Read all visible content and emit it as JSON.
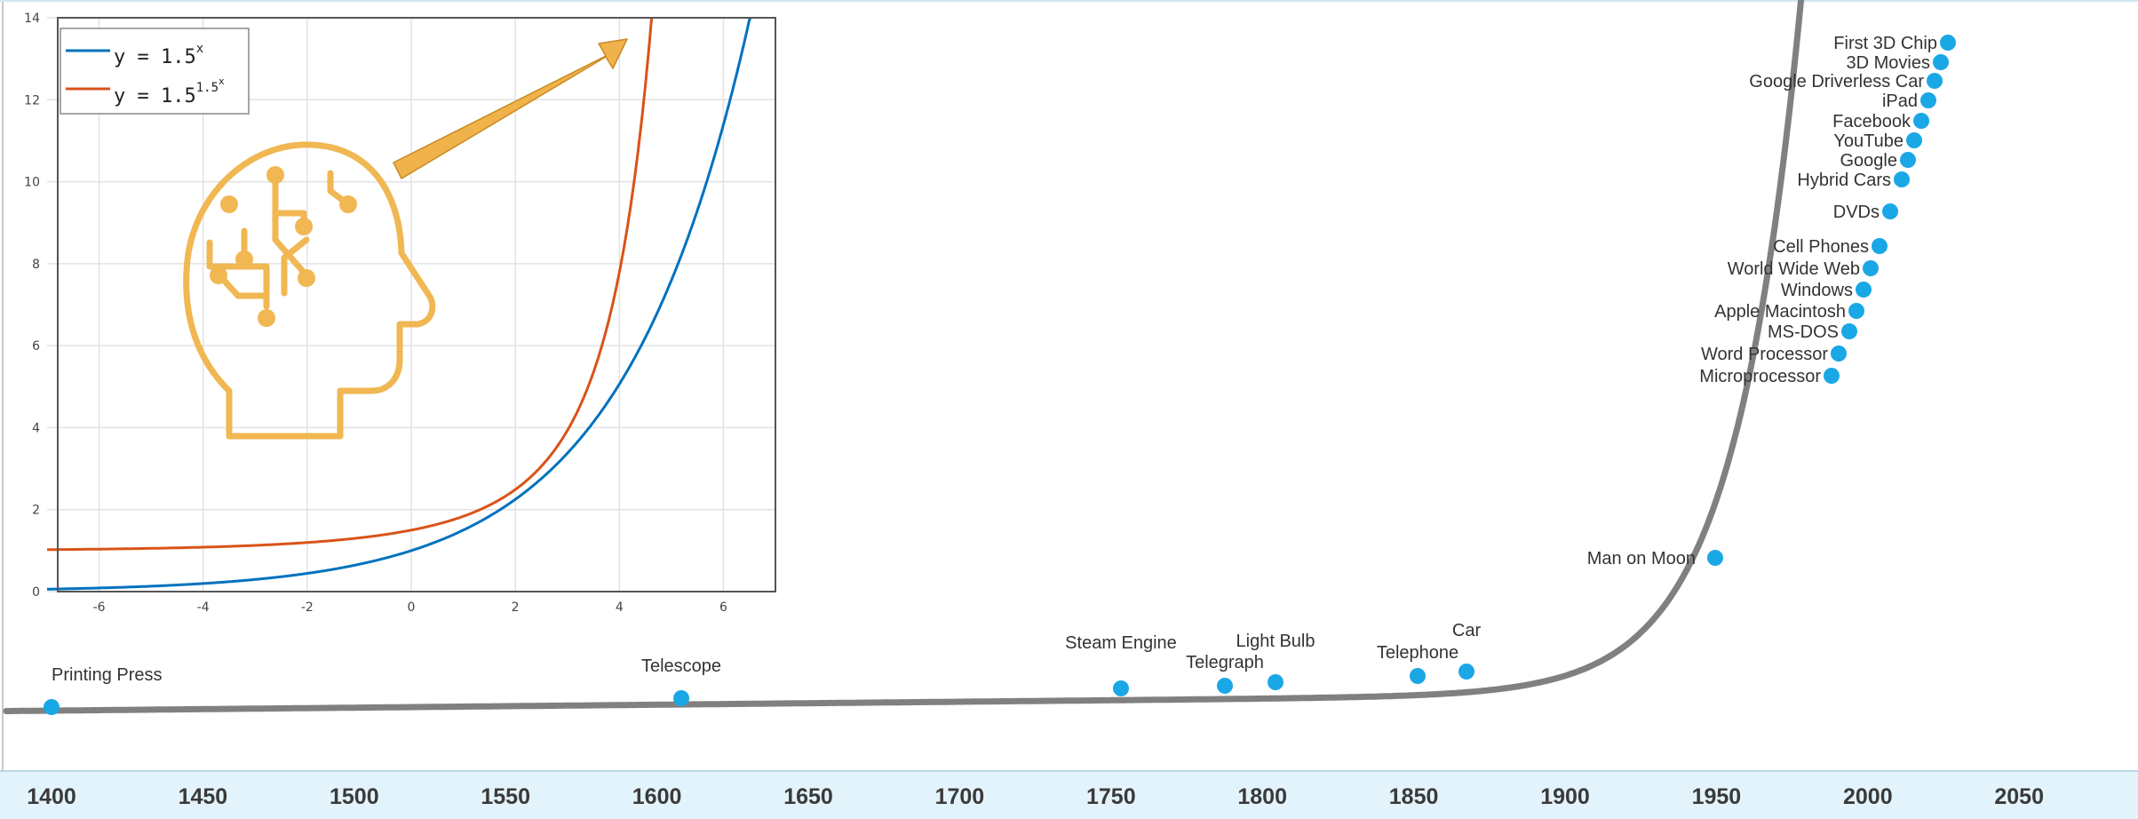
{
  "chart_data": [
    {
      "type": "line",
      "title": "",
      "xlabel": "",
      "ylabel": "",
      "x_ticks": [
        1400,
        1450,
        1500,
        1550,
        1600,
        1650,
        1700,
        1750,
        1800,
        1850,
        1900,
        1950,
        2000,
        2050
      ],
      "xlim": [
        1385,
        2085
      ],
      "line_color": "#808080",
      "marker_color": "#1aa7e6",
      "events": [
        {
          "label": "Printing Press",
          "year": 1440
        },
        {
          "label": "Telescope",
          "year": 1608
        },
        {
          "label": "Steam Engine",
          "year": 1712
        },
        {
          "label": "Telegraph",
          "year": 1837
        },
        {
          "label": "Light Bulb",
          "year": 1879
        },
        {
          "label": "Telephone",
          "year": 1876
        },
        {
          "label": "Car",
          "year": 1886
        },
        {
          "label": "Man on Moon",
          "year": 1969
        },
        {
          "label": "Microprocessor",
          "year": 1971
        },
        {
          "label": "Word Processor",
          "year": 1972
        },
        {
          "label": "MS-DOS",
          "year": 1981
        },
        {
          "label": "Apple Macintosh",
          "year": 1984
        },
        {
          "label": "Windows",
          "year": 1985
        },
        {
          "label": "World Wide Web",
          "year": 1991
        },
        {
          "label": "Cell Phones",
          "year": 1973
        },
        {
          "label": "DVDs",
          "year": 1995
        },
        {
          "label": "Hybrid Cars",
          "year": 1997
        },
        {
          "label": "Google",
          "year": 1998
        },
        {
          "label": "YouTube",
          "year": 2005
        },
        {
          "label": "Facebook",
          "year": 2004
        },
        {
          "label": "iPad",
          "year": 2010
        },
        {
          "label": "Google Driverless Car",
          "year": 2009
        },
        {
          "label": "3D Movies",
          "year": 2009
        },
        {
          "label": "First 3D Chip",
          "year": 2011
        }
      ]
    },
    {
      "type": "line",
      "title": "",
      "xlabel": "",
      "ylabel": "",
      "xlim": [
        -7,
        7
      ],
      "ylim": [
        0,
        14
      ],
      "x_ticks": [
        -6,
        -4,
        -2,
        0,
        2,
        4,
        6
      ],
      "y_ticks": [
        0,
        2,
        4,
        6,
        8,
        10,
        12,
        14
      ],
      "grid": true,
      "legend_position": "top-left",
      "series": [
        {
          "name": "y = 1.5^x",
          "legend_base": "y = 1.5",
          "legend_exp": "x",
          "color": "#0072bd",
          "formula": "1.5^x"
        },
        {
          "name": "y = 1.5^(1.5^x)",
          "legend_base": "y = 1.5",
          "legend_exp": "1.5",
          "legend_exp2": "x",
          "color": "#d95319",
          "formula": "1.5^(1.5^x)"
        }
      ]
    }
  ],
  "icons": {
    "head": "ai-brain-head-icon",
    "arrow": "growth-arrow-icon",
    "icon_color": "#f0b752",
    "arrow_color": "#f0b24a"
  }
}
